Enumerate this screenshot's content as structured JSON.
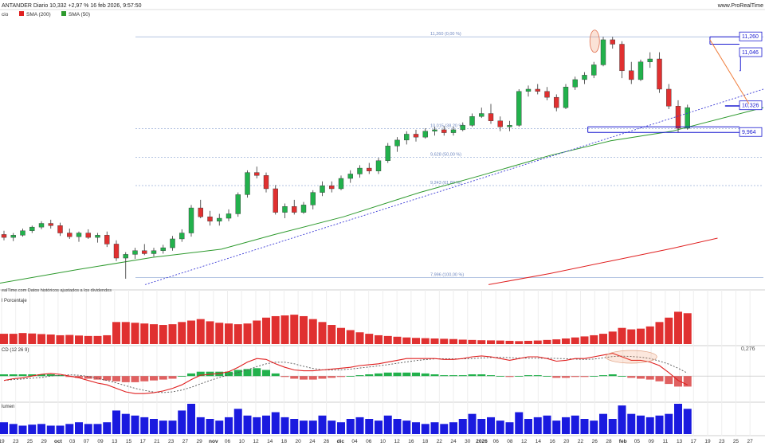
{
  "header": {
    "title": "ANTANDER Diario 10,332 +2,97 % 16 feb 2026, 9:57:50",
    "brand": "www.ProRealTime"
  },
  "legend": {
    "candles_prefix": "cio",
    "sma200": "SMA (200)",
    "sma50": "SMA (50)",
    "sma200_color": "#e02020",
    "sma50_color": "#2e9a2e"
  },
  "notes": {
    "source": "ealTime.com Datos históricos ajustados a los dividendos"
  },
  "panels": {
    "porcentaje_label": "l Porcentaje",
    "macd_label": "CD (12 26 9)",
    "volumen_label": "lumen",
    "macd_value": "0,276"
  },
  "levels": [
    {
      "name": "fib-0",
      "label": "11,260 (0,00 %)",
      "price": 11.26
    },
    {
      "name": "fib-382",
      "label": "10,015 (38,20 %)",
      "price": 10.015
    },
    {
      "name": "fib-50",
      "label": "9,628 (50,00 %)",
      "price": 9.628
    },
    {
      "name": "fib-618",
      "label": "9,243 (61,80 %)",
      "price": 9.243
    },
    {
      "name": "fib-100",
      "label": "7,996 (100,00 %)",
      "price": 7.996
    }
  ],
  "price_tags": [
    {
      "name": "tag-11260",
      "label": "11,260",
      "price": 11.26
    },
    {
      "name": "tag-11046",
      "label": "11,046",
      "price": 11.046
    },
    {
      "name": "tag-10326",
      "label": "10,326",
      "price": 10.326
    },
    {
      "name": "tag-9964",
      "label": "9,964",
      "price": 9.964
    }
  ],
  "x_axis_labels": [
    "19",
    "23",
    "25",
    "29",
    "oct",
    "03",
    "07",
    "09",
    "13",
    "15",
    "17",
    "21",
    "23",
    "27",
    "29",
    "nov",
    "06",
    "10",
    "12",
    "14",
    "18",
    "20",
    "24",
    "26",
    "dic",
    "04",
    "06",
    "10",
    "12",
    "16",
    "18",
    "22",
    "24",
    "30",
    "2026",
    "06",
    "08",
    "12",
    "14",
    "16",
    "20",
    "22",
    "26",
    "28",
    "feb",
    "05",
    "09",
    "11",
    "13",
    "17",
    "19",
    "23",
    "25",
    "27"
  ],
  "x_axis_bold": [
    "oct",
    "nov",
    "dic",
    "2026",
    "feb"
  ],
  "colors": {
    "up": "#22b14c",
    "down": "#e03030",
    "trendline": "#3b3bd6",
    "resistance": "#f08040",
    "box": "#1a1ad0",
    "volume": "#1a1adf",
    "pct": "#e03030",
    "macd_line": "#e02020",
    "signal_line": "#555555"
  },
  "chart_data": {
    "type": "candlestick",
    "ylim": [
      7.85,
      11.5
    ],
    "candles": [
      [
        8.58,
        8.63,
        8.5,
        8.54
      ],
      [
        8.54,
        8.6,
        8.49,
        8.57
      ],
      [
        8.57,
        8.66,
        8.55,
        8.63
      ],
      [
        8.63,
        8.7,
        8.6,
        8.68
      ],
      [
        8.68,
        8.76,
        8.65,
        8.73
      ],
      [
        8.73,
        8.78,
        8.66,
        8.7
      ],
      [
        8.7,
        8.74,
        8.56,
        8.6
      ],
      [
        8.6,
        8.66,
        8.52,
        8.55
      ],
      [
        8.55,
        8.62,
        8.48,
        8.6
      ],
      [
        8.6,
        8.65,
        8.52,
        8.54
      ],
      [
        8.54,
        8.6,
        8.47,
        8.57
      ],
      [
        8.57,
        8.62,
        8.41,
        8.45
      ],
      [
        8.45,
        8.5,
        8.22,
        8.26
      ],
      [
        8.26,
        8.34,
        7.98,
        8.31
      ],
      [
        8.31,
        8.4,
        8.25,
        8.36
      ],
      [
        8.36,
        8.45,
        8.3,
        8.32
      ],
      [
        8.32,
        8.4,
        8.28,
        8.36
      ],
      [
        8.36,
        8.44,
        8.32,
        8.4
      ],
      [
        8.4,
        8.56,
        8.36,
        8.52
      ],
      [
        8.52,
        8.65,
        8.48,
        8.6
      ],
      [
        8.6,
        8.98,
        8.55,
        8.94
      ],
      [
        8.94,
        9.05,
        8.8,
        8.82
      ],
      [
        8.82,
        8.9,
        8.7,
        8.76
      ],
      [
        8.76,
        8.86,
        8.7,
        8.8
      ],
      [
        8.8,
        8.92,
        8.76,
        8.86
      ],
      [
        8.86,
        9.15,
        8.82,
        9.12
      ],
      [
        9.12,
        9.45,
        9.08,
        9.42
      ],
      [
        9.42,
        9.5,
        9.34,
        9.38
      ],
      [
        9.38,
        9.42,
        9.15,
        9.2
      ],
      [
        9.2,
        9.25,
        8.85,
        8.88
      ],
      [
        8.88,
        9.0,
        8.8,
        8.96
      ],
      [
        8.96,
        9.05,
        8.85,
        8.88
      ],
      [
        8.88,
        9.02,
        8.86,
        8.98
      ],
      [
        8.98,
        9.18,
        8.92,
        9.15
      ],
      [
        9.15,
        9.3,
        9.1,
        9.24
      ],
      [
        9.24,
        9.3,
        9.15,
        9.2
      ],
      [
        9.2,
        9.38,
        9.18,
        9.34
      ],
      [
        9.34,
        9.45,
        9.28,
        9.4
      ],
      [
        9.4,
        9.52,
        9.35,
        9.48
      ],
      [
        9.48,
        9.55,
        9.4,
        9.44
      ],
      [
        9.44,
        9.62,
        9.4,
        9.58
      ],
      [
        9.58,
        9.82,
        9.55,
        9.78
      ],
      [
        9.78,
        9.9,
        9.7,
        9.86
      ],
      [
        9.86,
        9.98,
        9.8,
        9.94
      ],
      [
        9.94,
        10.0,
        9.84,
        9.9
      ],
      [
        9.9,
        10.02,
        9.88,
        9.98
      ],
      [
        9.98,
        10.04,
        9.92,
        10.0
      ],
      [
        10.0,
        10.05,
        9.92,
        9.96
      ],
      [
        9.96,
        10.04,
        9.92,
        10.0
      ],
      [
        10.0,
        10.1,
        9.98,
        10.06
      ],
      [
        10.06,
        10.22,
        10.04,
        10.18
      ],
      [
        10.18,
        10.3,
        10.16,
        10.22
      ],
      [
        10.22,
        10.35,
        10.08,
        10.12
      ],
      [
        10.12,
        10.18,
        9.98,
        10.04
      ],
      [
        10.04,
        10.12,
        9.98,
        10.06
      ],
      [
        10.06,
        10.55,
        10.04,
        10.52
      ],
      [
        10.52,
        10.6,
        10.45,
        10.55
      ],
      [
        10.55,
        10.62,
        10.48,
        10.52
      ],
      [
        10.52,
        10.58,
        10.4,
        10.44
      ],
      [
        10.44,
        10.48,
        10.25,
        10.3
      ],
      [
        10.3,
        10.62,
        10.28,
        10.58
      ],
      [
        10.58,
        10.72,
        10.54,
        10.68
      ],
      [
        10.68,
        10.78,
        10.62,
        10.74
      ],
      [
        10.74,
        10.92,
        10.7,
        10.88
      ],
      [
        10.88,
        11.26,
        10.86,
        11.22
      ],
      [
        11.22,
        11.26,
        11.1,
        11.16
      ],
      [
        11.16,
        11.2,
        10.7,
        10.8
      ],
      [
        10.8,
        10.92,
        10.62,
        10.68
      ],
      [
        10.68,
        10.95,
        10.66,
        10.92
      ],
      [
        10.92,
        11.05,
        10.84,
        10.96
      ],
      [
        10.96,
        11.05,
        10.5,
        10.55
      ],
      [
        10.55,
        10.62,
        10.28,
        10.32
      ],
      [
        10.32,
        10.4,
        9.96,
        10.02
      ],
      [
        10.02,
        10.34,
        10.0,
        10.3
      ]
    ],
    "sma50": [
      [
        0,
        7.92
      ],
      [
        0.1,
        8.1
      ],
      [
        0.2,
        8.27
      ],
      [
        0.29,
        8.38
      ],
      [
        0.36,
        8.58
      ],
      [
        0.45,
        8.82
      ],
      [
        0.55,
        9.15
      ],
      [
        0.63,
        9.38
      ],
      [
        0.72,
        9.65
      ],
      [
        0.8,
        9.85
      ],
      [
        0.88,
        9.98
      ],
      [
        1.0,
        10.3
      ]
    ],
    "sma200": [
      [
        0.64,
        7.9
      ],
      [
        0.72,
        8.05
      ],
      [
        0.8,
        8.22
      ],
      [
        0.88,
        8.39
      ],
      [
        0.94,
        8.53
      ]
    ],
    "trendline": [
      [
        0.19,
        7.9
      ],
      [
        1.0,
        10.55
      ]
    ],
    "resistance_line": [
      [
        0.93,
        11.22
      ],
      [
        1.09,
        10.35
      ]
    ],
    "boxes": [
      {
        "from": 0.93,
        "to": 1.09,
        "high": 11.26,
        "low": 11.16
      },
      {
        "from": 0.97,
        "to": 1.09,
        "high": 11.046,
        "low": 10.8
      },
      {
        "from": 0.95,
        "to": 1.09,
        "high": 10.326,
        "low": 10.32
      },
      {
        "from": 0.77,
        "to": 1.09,
        "high": 10.04,
        "low": 9.964
      }
    ],
    "porcentaje_ylim": [
      0,
      3.2
    ],
    "porcentaje": [
      0.7,
      0.7,
      0.75,
      0.72,
      0.68,
      0.65,
      0.6,
      0.62,
      0.58,
      0.55,
      0.55,
      0.6,
      1.5,
      1.5,
      1.45,
      1.4,
      1.35,
      1.3,
      1.35,
      1.5,
      1.6,
      1.7,
      1.55,
      1.45,
      1.4,
      1.35,
      1.4,
      1.6,
      1.8,
      1.9,
      1.95,
      2.0,
      1.9,
      1.7,
      1.5,
      1.3,
      1.1,
      0.95,
      0.8,
      0.7,
      0.6,
      0.55,
      0.5,
      0.45,
      0.42,
      0.4,
      0.38,
      0.36,
      0.34,
      0.3,
      0.28,
      0.26,
      0.25,
      0.24,
      0.22,
      0.2,
      0.22,
      0.24,
      0.28,
      0.32,
      0.38,
      0.45,
      0.52,
      0.6,
      0.7,
      0.85,
      1.1,
      1.0,
      1.05,
      1.2,
      1.5,
      1.8,
      2.2,
      2.1
    ],
    "macd_ylim": [
      -0.28,
      0.32
    ],
    "macd": [
      -0.05,
      -0.03,
      -0.02,
      0.0,
      0.02,
      0.03,
      0.02,
      0.0,
      -0.02,
      -0.05,
      -0.08,
      -0.1,
      -0.14,
      -0.18,
      -0.2,
      -0.2,
      -0.19,
      -0.17,
      -0.14,
      -0.1,
      -0.04,
      0.01,
      0.02,
      0.03,
      0.05,
      0.1,
      0.16,
      0.2,
      0.19,
      0.14,
      0.1,
      0.07,
      0.06,
      0.06,
      0.07,
      0.08,
      0.09,
      0.1,
      0.12,
      0.13,
      0.14,
      0.16,
      0.18,
      0.2,
      0.2,
      0.2,
      0.2,
      0.19,
      0.19,
      0.2,
      0.22,
      0.23,
      0.22,
      0.2,
      0.18,
      0.2,
      0.22,
      0.22,
      0.2,
      0.17,
      0.18,
      0.2,
      0.2,
      0.22,
      0.24,
      0.26,
      0.22,
      0.18,
      0.18,
      0.16,
      0.12,
      0.04,
      -0.05,
      -0.1
    ],
    "macd_hist": [
      0.02,
      0.02,
      0.02,
      0.02,
      0.02,
      0.02,
      0.01,
      -0.01,
      -0.02,
      -0.03,
      -0.04,
      -0.05,
      -0.06,
      -0.07,
      -0.07,
      -0.06,
      -0.05,
      -0.04,
      -0.03,
      0.0,
      0.03,
      0.05,
      0.05,
      0.05,
      0.05,
      0.07,
      0.08,
      0.09,
      0.07,
      0.03,
      -0.01,
      -0.03,
      -0.04,
      -0.04,
      -0.03,
      -0.02,
      -0.01,
      0.0,
      0.01,
      0.02,
      0.03,
      0.04,
      0.04,
      0.04,
      0.04,
      0.03,
      0.02,
      0.01,
      0.01,
      0.01,
      0.02,
      0.02,
      0.01,
      0.0,
      -0.01,
      0.0,
      0.01,
      0.01,
      0.0,
      -0.02,
      -0.02,
      -0.01,
      -0.01,
      0.0,
      0.01,
      0.02,
      0.0,
      -0.02,
      -0.03,
      -0.04,
      -0.06,
      -0.09,
      -0.12,
      -0.12
    ],
    "volume": [
      0.35,
      0.3,
      0.25,
      0.28,
      0.3,
      0.25,
      0.25,
      0.3,
      0.35,
      0.3,
      0.3,
      0.35,
      0.7,
      0.6,
      0.55,
      0.5,
      0.45,
      0.4,
      0.4,
      0.7,
      0.9,
      0.5,
      0.45,
      0.4,
      0.5,
      0.75,
      0.55,
      0.5,
      0.55,
      0.65,
      0.5,
      0.45,
      0.4,
      0.4,
      0.55,
      0.4,
      0.35,
      0.45,
      0.5,
      0.45,
      0.4,
      0.55,
      0.45,
      0.4,
      0.35,
      0.3,
      0.35,
      0.3,
      0.35,
      0.45,
      0.6,
      0.45,
      0.5,
      0.4,
      0.35,
      0.65,
      0.45,
      0.5,
      0.55,
      0.4,
      0.5,
      0.55,
      0.45,
      0.4,
      0.6,
      0.45,
      0.85,
      0.6,
      0.55,
      0.5,
      0.55,
      0.6,
      0.9,
      0.75
    ]
  }
}
